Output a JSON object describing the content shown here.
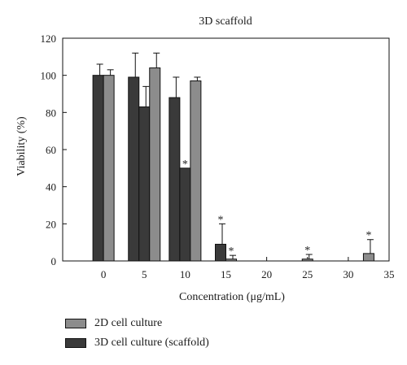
{
  "chart_data": {
    "type": "bar",
    "title": "3D scaffold",
    "xlabel": "Concentration (μg/mL)",
    "ylabel": "Viability (%)",
    "xlim": [
      -5,
      35
    ],
    "ylim": [
      0,
      120
    ],
    "xticks": [
      0,
      5,
      10,
      15,
      20,
      25,
      30,
      35
    ],
    "yticks": [
      0,
      20,
      40,
      60,
      80,
      100,
      120
    ],
    "grid": false,
    "legend_position": "bottom-left",
    "series": [
      {
        "name": "2D cell culture",
        "color": "#8c8c8c",
        "points": [
          {
            "x": 0,
            "y": 100,
            "err": 3,
            "star": false
          },
          {
            "x": 5,
            "y": 104,
            "err": 8,
            "star": false
          },
          {
            "x": 10,
            "y": 97,
            "err": 2,
            "star": false
          },
          {
            "x": 15,
            "y": 1,
            "err": 2,
            "star": true
          },
          {
            "x": 25,
            "y": 1,
            "err": 2.5,
            "star": true
          },
          {
            "x": 32.5,
            "y": 4,
            "err": 7.5,
            "star": true
          }
        ]
      },
      {
        "name": "3D cell culture (scaffold)",
        "color": "#3a3a3a",
        "points": [
          {
            "x": 0,
            "y": 100,
            "err": 6,
            "star": false
          },
          {
            "x": 5,
            "y": 99,
            "err": 13,
            "star": false
          },
          {
            "x": 5,
            "y": 83,
            "err": 11,
            "star": false
          },
          {
            "x": 10,
            "y": 88,
            "err": 11,
            "star": false
          },
          {
            "x": 10,
            "y": 50,
            "err": 0,
            "star": true
          },
          {
            "x": 15,
            "y": 9,
            "err": 11,
            "star": true
          }
        ]
      }
    ]
  }
}
